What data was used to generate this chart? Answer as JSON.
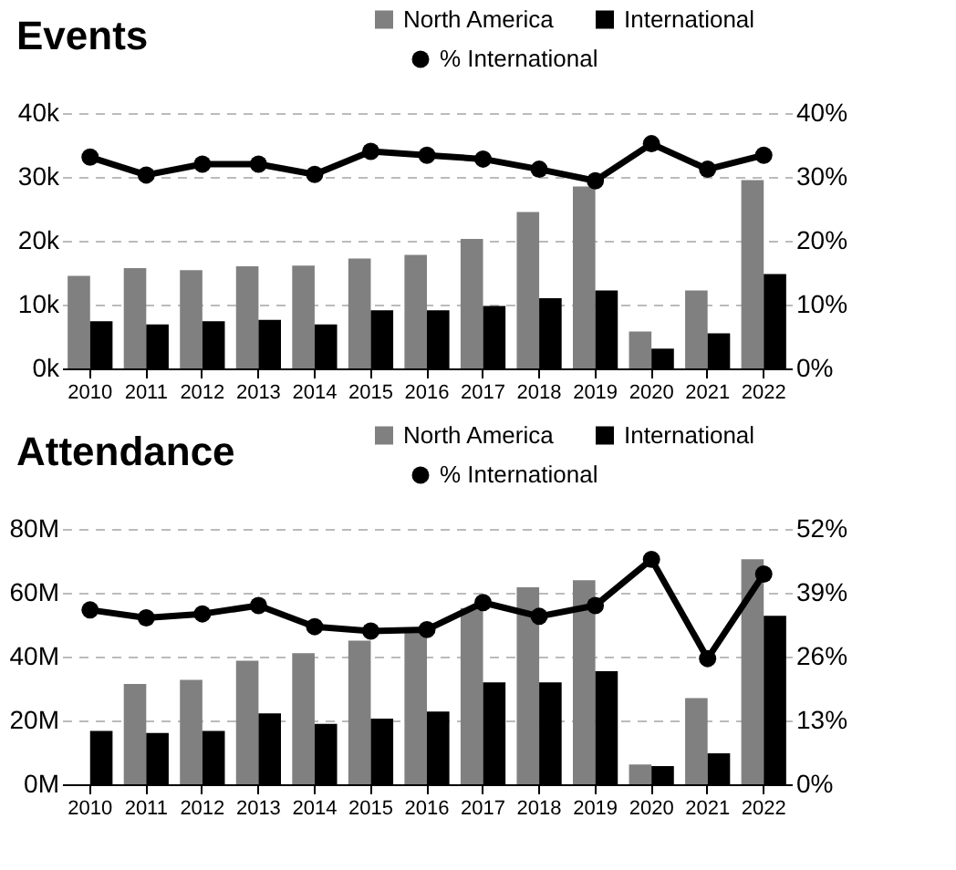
{
  "chart_data": [
    {
      "type": "bar",
      "title": "Events",
      "categories": [
        "2010",
        "2011",
        "2012",
        "2013",
        "2014",
        "2015",
        "2016",
        "2017",
        "2018",
        "2019",
        "2020",
        "2021",
        "2022"
      ],
      "series": [
        {
          "name": "North America",
          "color": "#808080",
          "values": [
            14.5,
            15.7,
            15.4,
            16.0,
            16.1,
            17.2,
            17.8,
            20.3,
            24.5,
            28.5,
            5.8,
            12.2,
            29.5
          ]
        },
        {
          "name": "International",
          "color": "#000000",
          "values": [
            7.4,
            6.9,
            7.4,
            7.6,
            6.9,
            9.1,
            9.1,
            9.8,
            11.0,
            12.2,
            3.1,
            5.5,
            14.8
          ]
        },
        {
          "name": "% International",
          "type": "line",
          "axis": "y2",
          "color": "#000000",
          "values": [
            33.1,
            30.3,
            32.0,
            32.0,
            30.4,
            34.0,
            33.4,
            32.8,
            31.2,
            29.4,
            35.2,
            31.2,
            33.4
          ]
        }
      ],
      "ylim": [
        0,
        40
      ],
      "yticks": [
        {
          "value": 0,
          "label": "0k"
        },
        {
          "value": 10,
          "label": "10k"
        },
        {
          "value": 20,
          "label": "20k"
        },
        {
          "value": 30,
          "label": "30k"
        },
        {
          "value": 40,
          "label": "40k"
        }
      ],
      "y2lim": [
        0,
        40
      ],
      "y2ticks": [
        {
          "value": 0,
          "label": "0%"
        },
        {
          "value": 10,
          "label": "10%"
        },
        {
          "value": 20,
          "label": "20%"
        },
        {
          "value": 30,
          "label": "30%"
        },
        {
          "value": 40,
          "label": "40%"
        }
      ],
      "grid": "y",
      "legend": "top right",
      "marker": "circle"
    },
    {
      "type": "bar",
      "title": "Attendance",
      "categories": [
        "2010",
        "2011",
        "2012",
        "2013",
        "2014",
        "2015",
        "2016",
        "2017",
        "2018",
        "2019",
        "2020",
        "2021",
        "2022"
      ],
      "series": [
        {
          "name": "North America",
          "color": "#808080",
          "values": [
            null,
            31.4,
            32.7,
            38.7,
            41.1,
            45.0,
            47.5,
            55.2,
            61.7,
            63.9,
            6.2,
            27.0,
            70.5
          ]
        },
        {
          "name": "International",
          "color": "#000000",
          "values": [
            16.7,
            16.1,
            16.7,
            22.2,
            18.9,
            20.6,
            22.8,
            31.9,
            31.9,
            35.4,
            5.7,
            9.7,
            52.8
          ]
        },
        {
          "name": "% International",
          "type": "line",
          "axis": "y2",
          "color": "#000000",
          "values": [
            35.5,
            33.9,
            34.7,
            36.4,
            32.1,
            31.2,
            31.5,
            37.0,
            34.2,
            36.4,
            45.8,
            25.6,
            42.8
          ]
        }
      ],
      "ylim": [
        0,
        80
      ],
      "yticks": [
        {
          "value": 0,
          "label": "0M"
        },
        {
          "value": 20,
          "label": "20M"
        },
        {
          "value": 40,
          "label": "40M"
        },
        {
          "value": 60,
          "label": "60M"
        },
        {
          "value": 80,
          "label": "80M"
        }
      ],
      "y2lim": [
        0,
        52
      ],
      "y2ticks": [
        {
          "value": 0,
          "label": "0%"
        },
        {
          "value": 13,
          "label": "13%"
        },
        {
          "value": 26,
          "label": "26%"
        },
        {
          "value": 39,
          "label": "39%"
        },
        {
          "value": 52,
          "label": "52%"
        }
      ],
      "grid": "y",
      "legend": "top right",
      "marker": "circle"
    }
  ]
}
